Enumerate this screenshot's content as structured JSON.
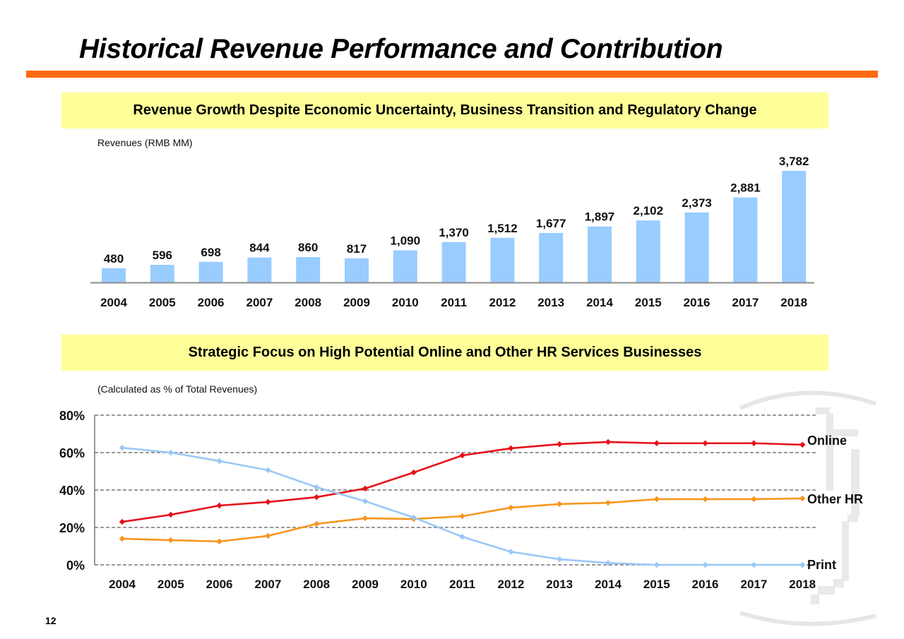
{
  "page": {
    "title": "Historical Revenue Performance and Contribution",
    "page_number": "12",
    "accent_color": "#ff6a13",
    "banner_color": "#ffff99"
  },
  "section1": {
    "banner": "Revenue Growth Despite Economic Uncertainty, Business Transition and Regulatory Change",
    "unit_note": "Revenues (RMB MM)"
  },
  "section2": {
    "banner": "Strategic Focus on High Potential Online and Other HR Services Businesses",
    "unit_note": "(Calculated as % of Total Revenues)"
  },
  "chart_data": [
    {
      "type": "bar",
      "title": "Revenues (RMB MM)",
      "xlabel": "",
      "ylabel": "Revenues (RMB MM)",
      "categories": [
        "2004",
        "2005",
        "2006",
        "2007",
        "2008",
        "2009",
        "2010",
        "2011",
        "2012",
        "2013",
        "2014",
        "2015",
        "2016",
        "2017",
        "2018"
      ],
      "values": [
        480,
        596,
        698,
        844,
        860,
        817,
        1090,
        1370,
        1512,
        1677,
        1897,
        2102,
        2373,
        2881,
        3782
      ],
      "data_labels": [
        "480",
        "596",
        "698",
        "844",
        "860",
        "817",
        "1,090",
        "1,370",
        "1,512",
        "1,677",
        "1,897",
        "2,102",
        "2,373",
        "2,881",
        "3,782"
      ],
      "ylim": [
        0,
        4000
      ],
      "grid": false,
      "bar_color": "#99ccff"
    },
    {
      "type": "line",
      "title": "(Calculated as % of Total Revenues)",
      "xlabel": "",
      "ylabel": "",
      "x": [
        "2004",
        "2005",
        "2006",
        "2007",
        "2008",
        "2009",
        "2010",
        "2011",
        "2012",
        "2013",
        "2014",
        "2015",
        "2016",
        "2017",
        "2018"
      ],
      "ylim": [
        0,
        80
      ],
      "yticks": [
        0,
        20,
        40,
        60,
        80
      ],
      "ytick_labels": [
        "0%",
        "20%",
        "40%",
        "60%",
        "80%"
      ],
      "grid": true,
      "legend": "right (inline labels at line ends)",
      "series": [
        {
          "name": "Online",
          "color": "#e8101a",
          "values": [
            23.0,
            26.8,
            31.7,
            33.6,
            36.2,
            40.8,
            49.4,
            58.5,
            62.3,
            64.5,
            65.7,
            65.0,
            65.0,
            65.0,
            64.2
          ]
        },
        {
          "name": "Other HR",
          "color": "#f7961e",
          "values": [
            14.0,
            13.2,
            12.5,
            15.5,
            21.9,
            24.9,
            24.5,
            26.0,
            30.6,
            32.5,
            33.2,
            35.1,
            35.1,
            35.1,
            35.5
          ]
        },
        {
          "name": "Print",
          "color": "#99c8f7",
          "values": [
            62.6,
            60.0,
            55.5,
            50.6,
            41.5,
            34.0,
            25.3,
            15.0,
            7.0,
            3.0,
            1.0,
            0.0,
            0.0,
            0.0,
            0.0
          ]
        }
      ]
    }
  ]
}
